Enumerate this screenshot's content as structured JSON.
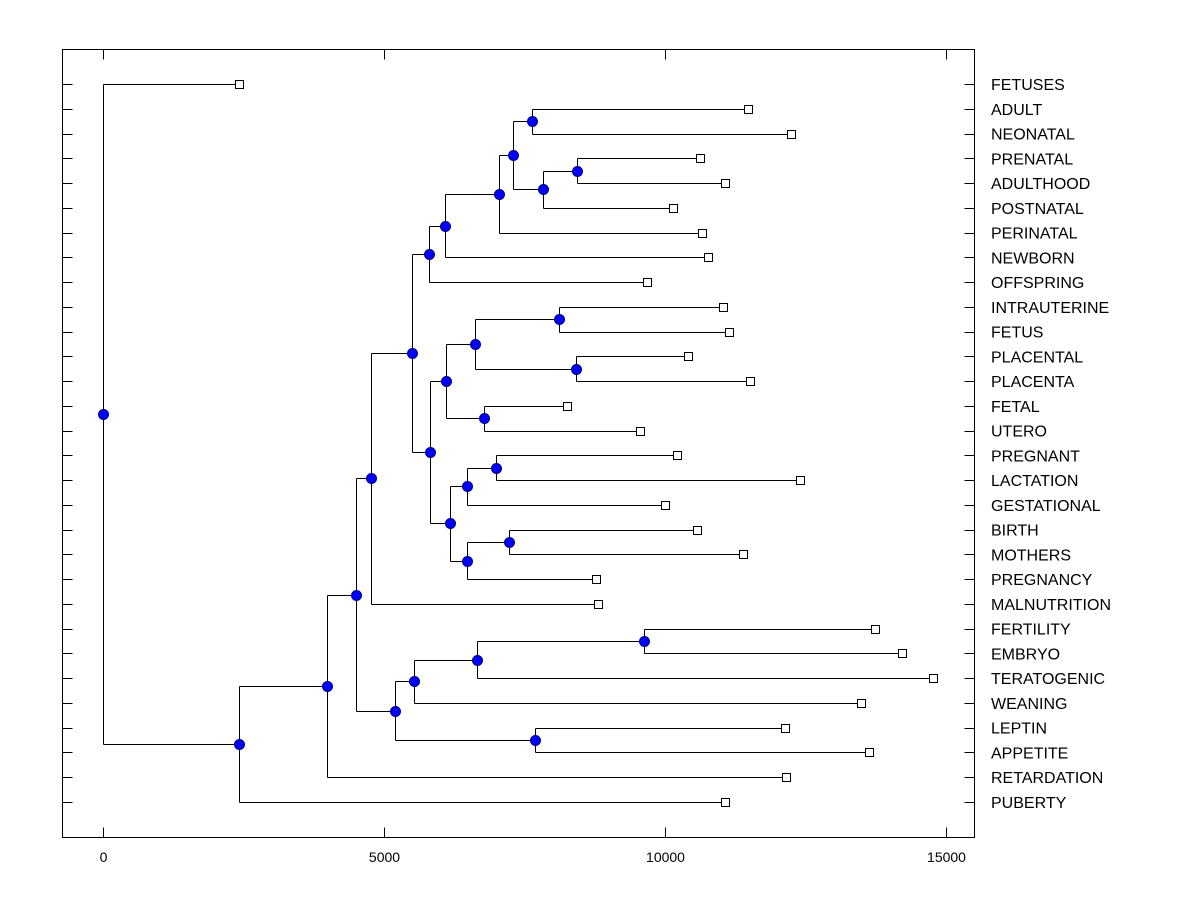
{
  "chart_data": {
    "type": "dendrogram",
    "title": "",
    "xlabel": "",
    "ylabel": "",
    "xlim": [
      -700,
      15500
    ],
    "x_ticks": [
      0,
      5000,
      10000,
      15000
    ],
    "x_tick_labels": [
      "0",
      "5000",
      "10000",
      "15000"
    ],
    "grid": false,
    "node_color": "#0000ff",
    "leaf_marker": "open-square",
    "leaves": [
      {
        "label": "FETUSES",
        "x": 2420
      },
      {
        "label": "ADULT",
        "x": 11480
      },
      {
        "label": "NEONATAL",
        "x": 12240
      },
      {
        "label": "PRENATAL",
        "x": 10620
      },
      {
        "label": "ADULTHOOD",
        "x": 11070
      },
      {
        "label": "POSTNATAL",
        "x": 10140
      },
      {
        "label": "PERINATAL",
        "x": 10660
      },
      {
        "label": "NEWBORN",
        "x": 10770
      },
      {
        "label": "OFFSPRING",
        "x": 9680
      },
      {
        "label": "INTRAUTERINE",
        "x": 11030
      },
      {
        "label": "FETUS",
        "x": 11140
      },
      {
        "label": "PLACENTAL",
        "x": 10410
      },
      {
        "label": "PLACENTA",
        "x": 11510
      },
      {
        "label": "FETAL",
        "x": 8260
      },
      {
        "label": "UTERO",
        "x": 9560
      },
      {
        "label": "PREGNANT",
        "x": 10210
      },
      {
        "label": "LACTATION",
        "x": 12400
      },
      {
        "label": "GESTATIONAL",
        "x": 10000
      },
      {
        "label": "BIRTH",
        "x": 10570
      },
      {
        "label": "MOTHERS",
        "x": 11390
      },
      {
        "label": "PREGNANCY",
        "x": 8770
      },
      {
        "label": "MALNUTRITION",
        "x": 8810
      },
      {
        "label": "FERTILITY",
        "x": 13740
      },
      {
        "label": "EMBRYO",
        "x": 14220
      },
      {
        "label": "TERATOGENIC",
        "x": 14770
      },
      {
        "label": "WEANING",
        "x": 13490
      },
      {
        "label": "LEPTIN",
        "x": 12140
      },
      {
        "label": "APPETITE",
        "x": 13630
      },
      {
        "label": "RETARDATION",
        "x": 12150
      },
      {
        "label": "PUBERTY",
        "x": 11070
      }
    ],
    "nodes": [
      {
        "id": "n1",
        "x": 7630,
        "children": [
          "L1",
          "L2"
        ]
      },
      {
        "id": "n2",
        "x": 8430,
        "children": [
          "L3",
          "L4"
        ]
      },
      {
        "id": "n3",
        "x": 7830,
        "children": [
          "n2",
          "L5"
        ]
      },
      {
        "id": "n4",
        "x": 7300,
        "children": [
          "n1",
          "n3"
        ]
      },
      {
        "id": "n5",
        "x": 7050,
        "children": [
          "n4",
          "L6"
        ]
      },
      {
        "id": "n6",
        "x": 6090,
        "children": [
          "n5",
          "L7"
        ]
      },
      {
        "id": "n7",
        "x": 5800,
        "children": [
          "n6",
          "L8"
        ]
      },
      {
        "id": "n8",
        "x": 8120,
        "children": [
          "L9",
          "L10"
        ]
      },
      {
        "id": "n9",
        "x": 8420,
        "children": [
          "L11",
          "L12"
        ]
      },
      {
        "id": "n10",
        "x": 6620,
        "children": [
          "n8",
          "n9"
        ]
      },
      {
        "id": "n11",
        "x": 6780,
        "children": [
          "L13",
          "L14"
        ]
      },
      {
        "id": "n12",
        "x": 6100,
        "children": [
          "n10",
          "n11"
        ]
      },
      {
        "id": "n13",
        "x": 6990,
        "children": [
          "L15",
          "L16"
        ]
      },
      {
        "id": "n14",
        "x": 6470,
        "children": [
          "n13",
          "L17"
        ]
      },
      {
        "id": "n15",
        "x": 7220,
        "children": [
          "L18",
          "L19"
        ]
      },
      {
        "id": "n16",
        "x": 6470,
        "children": [
          "n15",
          "L20"
        ]
      },
      {
        "id": "n17",
        "x": 6170,
        "children": [
          "n14",
          "n16"
        ]
      },
      {
        "id": "n18",
        "x": 5820,
        "children": [
          "n12",
          "n17"
        ]
      },
      {
        "id": "n19",
        "x": 5500,
        "children": [
          "n7",
          "n18"
        ]
      },
      {
        "id": "n20",
        "x": 4770,
        "children": [
          "n19",
          "L21"
        ]
      },
      {
        "id": "n21",
        "x": 9630,
        "children": [
          "L22",
          "L23"
        ]
      },
      {
        "id": "n22",
        "x": 6650,
        "children": [
          "n21",
          "L24"
        ]
      },
      {
        "id": "n23",
        "x": 5530,
        "children": [
          "n22",
          "L25"
        ]
      },
      {
        "id": "n24",
        "x": 7680,
        "children": [
          "L26",
          "L27"
        ]
      },
      {
        "id": "n25",
        "x": 5190,
        "children": [
          "n23",
          "n24"
        ]
      },
      {
        "id": "n26",
        "x": 4500,
        "children": [
          "n20",
          "n25"
        ]
      },
      {
        "id": "n27",
        "x": 3990,
        "children": [
          "n26",
          "L28"
        ]
      },
      {
        "id": "n28",
        "x": 2420,
        "children": [
          "n27",
          "L29"
        ]
      },
      {
        "id": "n29",
        "x": 0,
        "children": [
          "L0",
          "n28"
        ]
      }
    ]
  }
}
